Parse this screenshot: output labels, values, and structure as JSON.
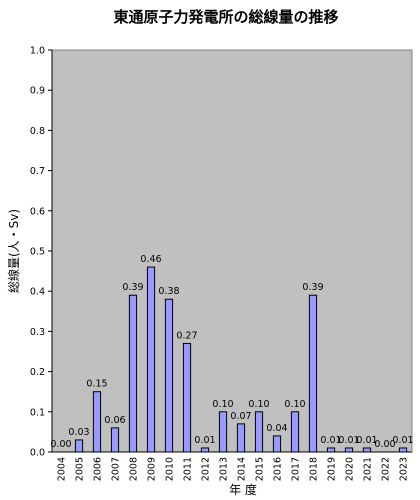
{
  "chart_data": {
    "type": "bar",
    "title": "東通原子力発電所の総線量の推移",
    "xlabel": "年 度",
    "ylabel": "総線量(人・Sv)",
    "ylim": [
      0,
      1.0
    ],
    "yticks": [
      "0.0",
      "0.1",
      "0.2",
      "0.3",
      "0.4",
      "0.5",
      "0.6",
      "0.7",
      "0.8",
      "0.9",
      "1.0"
    ],
    "categories": [
      "2004",
      "2005",
      "2006",
      "2007",
      "2008",
      "2009",
      "2010",
      "2011",
      "2012",
      "2013",
      "2014",
      "2015",
      "2016",
      "2017",
      "2018",
      "2019",
      "2020",
      "2021",
      "2022",
      "2023"
    ],
    "values": [
      0.0,
      0.03,
      0.15,
      0.06,
      0.39,
      0.46,
      0.38,
      0.27,
      0.01,
      0.1,
      0.07,
      0.1,
      0.04,
      0.1,
      0.39,
      0.01,
      0.01,
      0.01,
      0.0,
      0.01
    ],
    "value_labels": [
      "0.00",
      "0.03",
      "0.15",
      "0.06",
      "0.39",
      "0.46",
      "0.38",
      "0.27",
      "0.01",
      "0.10",
      "0.07",
      "0.10",
      "0.04",
      "0.10",
      "0.39",
      "0.01",
      "0.01",
      "0.01",
      "0.00",
      "0.01"
    ],
    "grid": false,
    "colors": {
      "plot_bg": "#c0c0c0",
      "bar_fill": "#9999ff",
      "bar_stroke": "#000000"
    }
  }
}
